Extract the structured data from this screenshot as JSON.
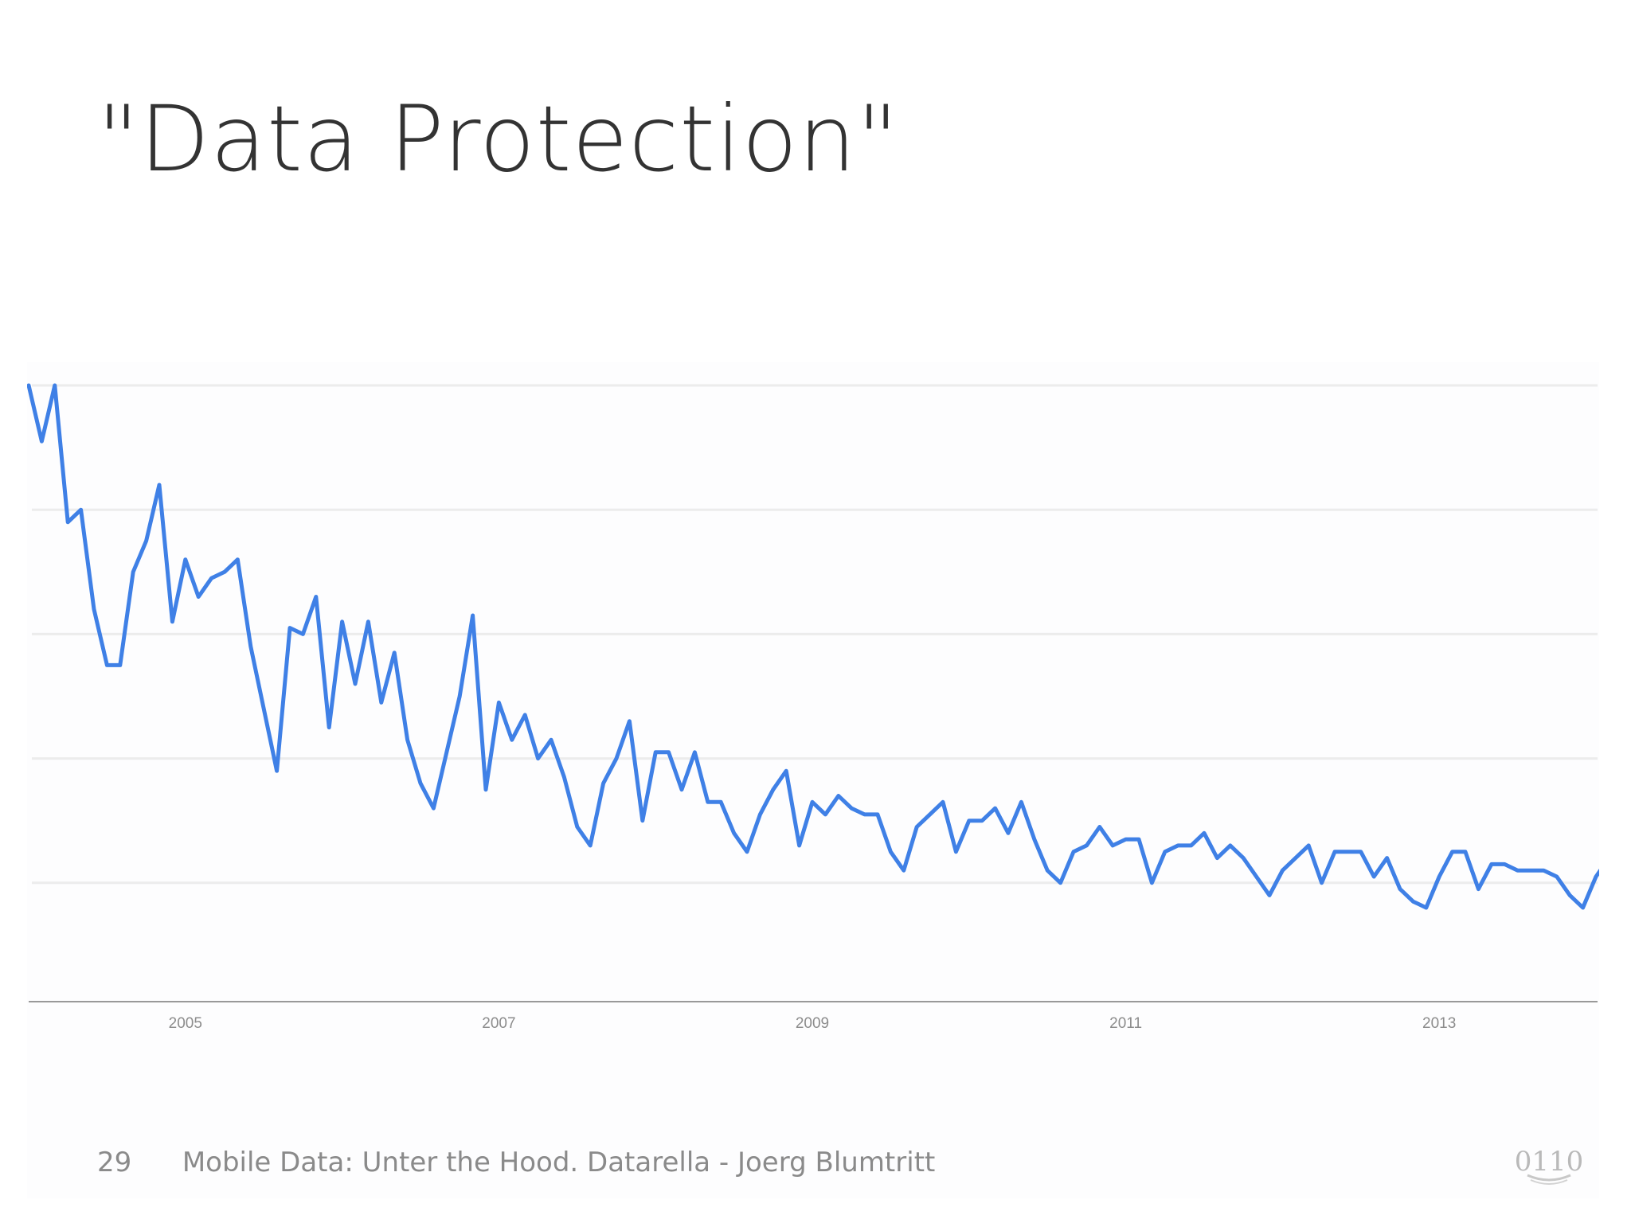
{
  "slide": {
    "title": "\"Data Protection\"",
    "page_number": "29",
    "footer_text": "Mobile Data: Unter the Hood. Datarella - Joerg Blumtritt",
    "logo_text": "0110"
  },
  "colors": {
    "line": "#3f80e6",
    "gridline": "#ececec",
    "axis": "#999999",
    "tick_label": "#8c8c8c",
    "title": "#333333",
    "footer": "#8a8a8a"
  },
  "chart_data": {
    "type": "line",
    "title": "",
    "xlabel": "",
    "ylabel": "",
    "grid": true,
    "legend": "none",
    "xlim": [
      2004.0,
      2014.0
    ],
    "ylim": [
      0,
      100
    ],
    "x_ticks": [
      {
        "value": 2005,
        "label": "2005"
      },
      {
        "value": 2007,
        "label": "2007"
      },
      {
        "value": 2009,
        "label": "2009"
      },
      {
        "value": 2011,
        "label": "2011"
      },
      {
        "value": 2013,
        "label": "2013"
      }
    ],
    "y_gridlines": [
      20,
      40,
      60,
      80,
      100
    ],
    "series": [
      {
        "name": "",
        "x_start": "2004-01",
        "interval": "month",
        "values": [
          100,
          91,
          100,
          78,
          80,
          64,
          55,
          55,
          70,
          75,
          84,
          62,
          72,
          66,
          69,
          70,
          72,
          58,
          48,
          38,
          61,
          60,
          66,
          45,
          62,
          52,
          62,
          49,
          57,
          43,
          36,
          32,
          41,
          50,
          63,
          35,
          49,
          43,
          47,
          40,
          43,
          37,
          29,
          26,
          36,
          40,
          46,
          30,
          41,
          41,
          35,
          41,
          33,
          33,
          28,
          25,
          31,
          35,
          38,
          26,
          33,
          31,
          34,
          32,
          31,
          31,
          25,
          22,
          29,
          31,
          33,
          25,
          30,
          30,
          32,
          28,
          33,
          27,
          22,
          20,
          25,
          26,
          29,
          26,
          27,
          27,
          20,
          25,
          26,
          26,
          28,
          24,
          26,
          24,
          21,
          18,
          22,
          24,
          26,
          20,
          25,
          25,
          25,
          21,
          24,
          19,
          17,
          16,
          21,
          25,
          25,
          19,
          23,
          23,
          22,
          22,
          22,
          21,
          18,
          16,
          21,
          24,
          25,
          18,
          20
        ]
      }
    ]
  }
}
